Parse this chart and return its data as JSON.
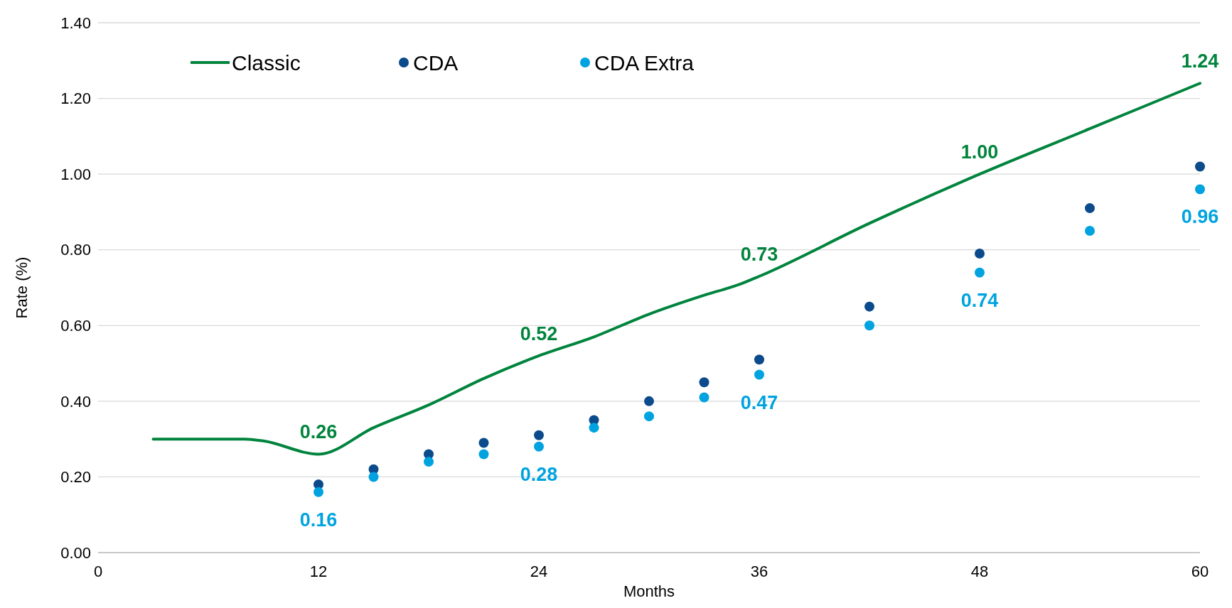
{
  "chart_data": {
    "type": "scatter",
    "xlabel": "Months",
    "ylabel": "Rate (%)",
    "xlim": [
      0,
      60
    ],
    "xticks": [
      0,
      12,
      24,
      36,
      48,
      60
    ],
    "ylim": [
      0,
      1.4
    ],
    "yticks": [
      {
        "value": 0,
        "label": "0.00"
      },
      {
        "value": 0.2,
        "label": "0.20"
      },
      {
        "value": 0.4,
        "label": "0.40"
      },
      {
        "value": 0.6,
        "label": "0.60"
      },
      {
        "value": 0.8,
        "label": "0.80"
      },
      {
        "value": 1.0,
        "label": "1.00"
      },
      {
        "value": 1.2,
        "label": "1.20"
      },
      {
        "value": 1.4,
        "label": "1.40"
      }
    ],
    "grid": "y",
    "legend": "top left",
    "series": [
      {
        "name": "Classic",
        "type": "line",
        "marker": "none",
        "color": "#00843d",
        "x": [
          3,
          6,
          8,
          9,
          12,
          15,
          18,
          21,
          24,
          27,
          30,
          33,
          35,
          36,
          42,
          48,
          54,
          60
        ],
        "values": [
          0.3,
          0.3,
          0.3,
          0.295,
          0.26,
          0.33,
          0.39,
          0.46,
          0.52,
          0.57,
          0.63,
          0.68,
          0.71,
          0.73,
          0.87,
          1.0,
          1.12,
          1.24
        ],
        "value_labels": [
          null,
          null,
          null,
          null,
          "0.26",
          null,
          null,
          null,
          "0.52",
          null,
          null,
          null,
          null,
          "0.73",
          null,
          "1.00",
          null,
          "1.24"
        ]
      },
      {
        "name": "CDA",
        "marker": "circle",
        "color": "#0b4a8b",
        "x": [
          12,
          15,
          18,
          21,
          24,
          27,
          30,
          33,
          36,
          42,
          48,
          54,
          60
        ],
        "values": [
          0.18,
          0.22,
          0.26,
          0.29,
          0.31,
          0.35,
          0.4,
          0.45,
          0.51,
          0.65,
          0.79,
          0.91,
          1.02
        ]
      },
      {
        "name": "CDA Extra",
        "marker": "circle",
        "color": "#00a3e0",
        "x": [
          12,
          15,
          18,
          21,
          24,
          27,
          30,
          33,
          36,
          42,
          48,
          54,
          60
        ],
        "values": [
          0.16,
          0.2,
          0.24,
          0.26,
          0.28,
          0.33,
          0.36,
          0.41,
          0.47,
          0.6,
          0.74,
          0.85,
          0.96
        ],
        "value_labels": [
          "0.16",
          null,
          null,
          null,
          "0.28",
          null,
          null,
          null,
          "0.47",
          null,
          "0.74",
          null,
          "0.96"
        ]
      }
    ]
  }
}
